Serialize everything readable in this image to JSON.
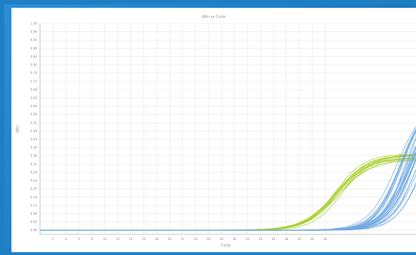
{
  "colors": {
    "background_frame": "#1f7fc4",
    "panel": "#ffffff",
    "grid": "#e6e6e6",
    "axis": "#b0b0b0",
    "green_series": "#a6cf2d",
    "blue_series": "#6fa8e0"
  },
  "chart_data": {
    "type": "line",
    "title": "ΔRn vs Cycle",
    "xlabel": "Cycle",
    "ylabel": "ΔRn",
    "xlim": [
      0,
      58
    ],
    "ylim": [
      -0.02,
      1.0
    ],
    "grid": true,
    "legend": "none",
    "x_ticks": [
      "2",
      "4",
      "6",
      "8",
      "10",
      "12",
      "14",
      "16",
      "18",
      "20",
      "22",
      "24",
      "26",
      "28",
      "30",
      "32",
      "34",
      "36",
      "38",
      "40",
      "42",
      "44"
    ],
    "y_ticks": [
      "0.00",
      "0.04",
      "0.08",
      "0.12",
      "0.16",
      "0.20",
      "0.24",
      "0.28",
      "0.32",
      "0.36",
      "0.40",
      "0.44",
      "0.48",
      "0.52",
      "0.56",
      "0.60",
      "0.64",
      "0.68",
      "0.72",
      "0.76",
      "0.80",
      "0.84",
      "0.88",
      "0.92",
      "0.96",
      "1.00"
    ],
    "series": [
      {
        "color": "#a6cf2d",
        "count": 12,
        "midpoint": 46.0,
        "spread": 0.6,
        "plateau": 0.36,
        "plateau_spread": 0.02,
        "steepness": 0.42
      },
      {
        "color": "#6fa8e0",
        "count": 26,
        "midpoint": 57.0,
        "spread": 2.2,
        "plateau": 0.62,
        "plateau_spread": 0.05,
        "steepness": 0.48
      }
    ]
  }
}
